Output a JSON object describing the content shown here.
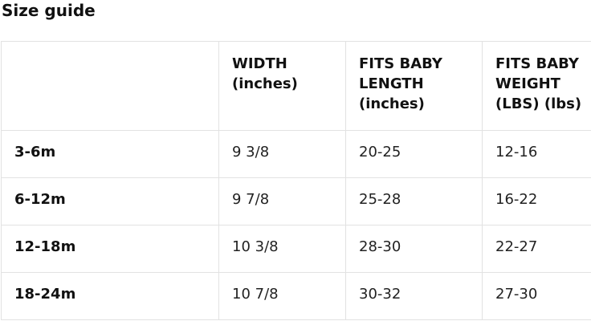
{
  "page": {
    "title": "Size guide"
  },
  "size_table": {
    "columns": [
      {
        "label": ""
      },
      {
        "label": "WIDTH\n(inches)"
      },
      {
        "label": "FITS BABY\nLENGTH\n(inches)"
      },
      {
        "label": "FITS BABY\nWEIGHT\n(LBS) (lbs)"
      }
    ],
    "rows": [
      {
        "size": "3-6m",
        "width": "9 3/8",
        "length": "20-25",
        "weight": "12-16"
      },
      {
        "size": "6-12m",
        "width": "9 7/8",
        "length": "25-28",
        "weight": "16-22"
      },
      {
        "size": "12-18m",
        "width": "10 3/8",
        "length": "28-30",
        "weight": "22-27"
      },
      {
        "size": "18-24m",
        "width": "10 7/8",
        "length": "30-32",
        "weight": "27-30"
      }
    ]
  },
  "colors": {
    "border": "#e2e2e2",
    "text": "#222222",
    "heading_text": "#111111",
    "background": "#ffffff"
  }
}
